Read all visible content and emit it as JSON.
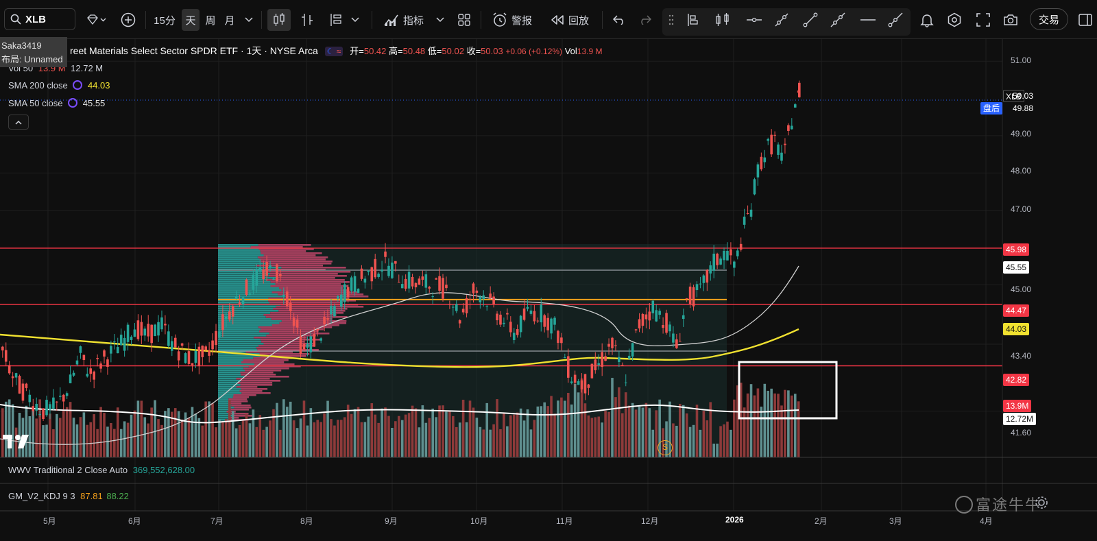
{
  "toolbar": {
    "symbol": "XLB",
    "interval_15m": "15分",
    "interval_day": "天",
    "interval_week": "周",
    "interval_month": "月",
    "indicators_label": "指标",
    "alert_label": "警报",
    "replay_label": "回放",
    "trade_label": "交易"
  },
  "tooltip": {
    "line1": "Saka3419",
    "line2": "布局: Unnamed"
  },
  "header": {
    "title": "reet Materials Select Sector SPDR ETF · 1天 · NYSE Arca",
    "open_label": "开=",
    "open": "50.42",
    "high_label": "高=",
    "high": "50.48",
    "low_label": "低=",
    "low": "50.02",
    "close_label": "收=",
    "close": "50.03",
    "change": "+0.06 (+0.12%)",
    "vol_label": "Vol",
    "vol": "13.9 M"
  },
  "legends": {
    "vol50_label": "Vol 50",
    "vol50_a": "13.9 M",
    "vol50_b": "12.72 M",
    "sma200_label": "SMA 200 close",
    "sma200_value": "44.03",
    "sma50_label": "SMA 50 close",
    "sma50_value": "45.55"
  },
  "indicators": {
    "wwv_label": "WWV Traditional 2 Close Auto",
    "wwv_value": "369,552,628.00",
    "kdj_label": "GM_V2_KDJ 9 3",
    "kdj_k": "87.81",
    "kdj_d": "88.22"
  },
  "price_axis": {
    "ticks": [
      "51.00",
      "49.00",
      "48.00",
      "47.00",
      "45.00",
      "43.40",
      "41.60"
    ],
    "tags": {
      "symbol": "XLB",
      "last": "50.03",
      "after_hours_label": "盘后",
      "after_hours": "49.88",
      "resist_high": "45.98",
      "sma50": "45.55",
      "resist_mid": "44.47",
      "sma200": "44.03",
      "support": "42.82",
      "vol": "13.9M",
      "vol_ma": "12.72M"
    }
  },
  "time_axis": [
    "5月",
    "6月",
    "7月",
    "8月",
    "9月",
    "10月",
    "11月",
    "12月",
    "2026",
    "2月",
    "3月",
    "4月"
  ],
  "watermark": "富途牛牛",
  "badge": "S",
  "colors": {
    "up": "#26a69a",
    "down": "#ef5350",
    "sma200": "#f0e130",
    "level_line": "#f23645",
    "poc_line": "#f7a21b",
    "accent": "#2962ff"
  },
  "chart_data": {
    "type": "candlestick",
    "title": "reet Materials Select Sector SPDR ETF · 1天 · NYSE Arca",
    "x_range": [
      "2025-04",
      "2026-04"
    ],
    "y_range": [
      41.2,
      51.4
    ],
    "horizontal_levels": [
      45.98,
      44.47,
      42.82
    ],
    "sma200_last": 44.03,
    "sma50_last": 45.55,
    "last_close": 50.03,
    "after_hours": 49.88
  }
}
